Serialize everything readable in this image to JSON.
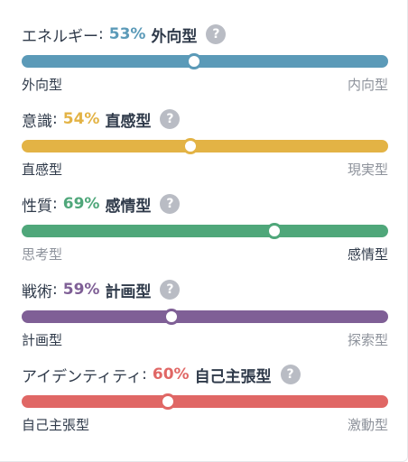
{
  "traits": [
    {
      "name": "エネルギー",
      "colon": ":",
      "percent": "53%",
      "percent_value": 53,
      "type": "外向型",
      "color": "#5b9ab8",
      "left_label": "外向型",
      "right_label": "内向型",
      "active_side": "left",
      "help_icon": "question-mark"
    },
    {
      "name": "意識",
      "colon": ":",
      "percent": "54%",
      "percent_value": 54,
      "type": "直感型",
      "color": "#e3b345",
      "left_label": "直感型",
      "right_label": "現実型",
      "active_side": "left",
      "help_icon": "question-mark"
    },
    {
      "name": "性質",
      "colon": ":",
      "percent": "69%",
      "percent_value": 69,
      "type": "感情型",
      "color": "#4fa77a",
      "left_label": "思考型",
      "right_label": "感情型",
      "active_side": "right",
      "help_icon": "question-mark"
    },
    {
      "name": "戦術",
      "colon": ":",
      "percent": "59%",
      "percent_value": 59,
      "type": "計画型",
      "color": "#7f5f96",
      "left_label": "計画型",
      "right_label": "探索型",
      "active_side": "left",
      "help_icon": "question-mark"
    },
    {
      "name": "アイデンティティ",
      "colon": ":",
      "percent": "60%",
      "percent_value": 60,
      "type": "自己主張型",
      "color": "#e06765",
      "left_label": "自己主張型",
      "right_label": "激動型",
      "active_side": "left",
      "help_icon": "question-mark"
    }
  ]
}
